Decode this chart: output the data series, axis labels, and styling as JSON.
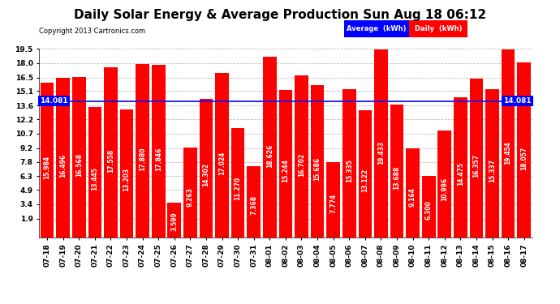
{
  "title": "Daily Solar Energy & Average Production Sun Aug 18 06:12",
  "copyright": "Copyright 2013 Cartronics.com",
  "average_value": 14.081,
  "bar_color": "#FF0000",
  "average_line_color": "#0000FF",
  "background_color": "#FFFFFF",
  "plot_background_color": "#FFFFFF",
  "legend_avg_color": "#0000FF",
  "legend_daily_color": "#FF0000",
  "legend_avg_label": "Average  (kWh)",
  "legend_daily_label": "Daily  (kWh)",
  "categories": [
    "07-18",
    "07-19",
    "07-20",
    "07-21",
    "07-22",
    "07-23",
    "07-24",
    "07-25",
    "07-26",
    "07-27",
    "07-28",
    "07-29",
    "07-30",
    "07-31",
    "08-01",
    "08-02",
    "08-03",
    "08-04",
    "08-05",
    "08-06",
    "08-07",
    "08-08",
    "08-09",
    "08-10",
    "08-11",
    "08-12",
    "08-13",
    "08-14",
    "08-15",
    "08-16",
    "08-17"
  ],
  "values": [
    15.984,
    16.496,
    16.568,
    13.445,
    17.558,
    13.203,
    17.88,
    17.846,
    3.599,
    9.263,
    14.302,
    17.024,
    11.27,
    7.368,
    18.626,
    15.244,
    16.702,
    15.686,
    7.774,
    15.335,
    13.122,
    19.433,
    13.688,
    9.164,
    6.3,
    10.996,
    14.475,
    16.357,
    15.337,
    19.454,
    18.057
  ],
  "ylim": [
    0,
    19.5
  ],
  "yticks": [
    1.9,
    3.4,
    4.9,
    6.3,
    7.8,
    9.2,
    10.7,
    12.2,
    13.6,
    15.1,
    16.5,
    18.0,
    19.5
  ],
  "grid_color": "#BBBBBB",
  "title_fontsize": 11,
  "tick_fontsize": 6.5,
  "bar_label_fontsize": 5.5,
  "avg_label": "14.081",
  "avg_label_fontsize": 6.5
}
